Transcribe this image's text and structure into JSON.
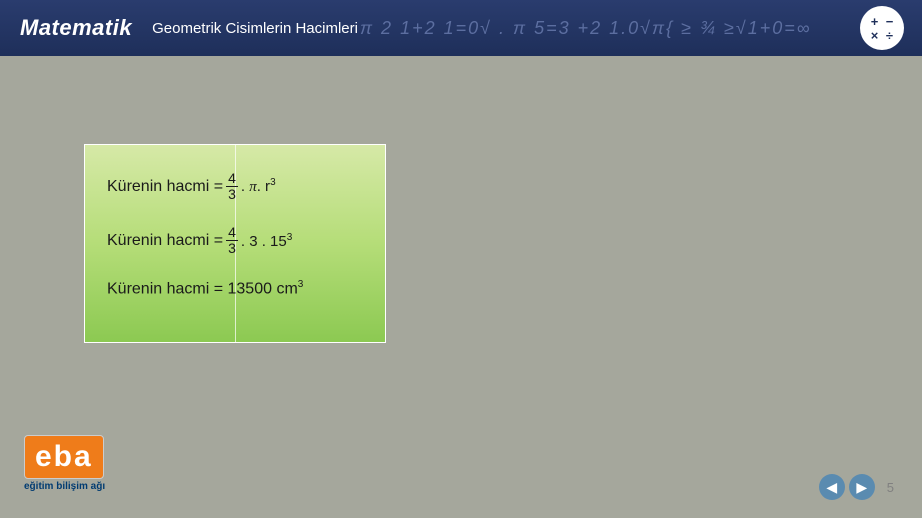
{
  "header": {
    "brand": "Matematik",
    "subtitle": "Geometrik Cisimlerin Hacimleri",
    "math_decoration": "π 2 1+2 1=0√ . π 5=3 +2 1.0√π{ ≥ ¾ ≥√1+0=∞",
    "icon_cells": [
      "+",
      "−",
      "×",
      "÷"
    ],
    "bg_gradient_top": "#2a3c6e",
    "bg_gradient_bottom": "#1e2f5a",
    "decoration_color": "#5c6ea0"
  },
  "content": {
    "background_color": "#a5a79c"
  },
  "formula_box": {
    "gradient_top": "#d6e9a7",
    "gradient_mid": "#b5dd78",
    "gradient_bottom": "#8cc952",
    "border_color": "#ffffff",
    "lines": [
      {
        "label": "Kürenin hacmi = ",
        "frac_num": "4",
        "frac_den": "3",
        "expr_prefix": ". ",
        "expr_pi": "π",
        "expr_mid": ". r",
        "expr_sup": "3"
      },
      {
        "label": "Kürenin hacmi = ",
        "frac_num": "4",
        "frac_den": "3",
        "expr_prefix": ". 3 . 15",
        "expr_sup": "3"
      },
      {
        "label": "Kürenin hacmi = 13500 cm",
        "expr_sup": "3"
      }
    ]
  },
  "logo": {
    "text": "eba",
    "subtitle": "eğitim bilişim ağı",
    "bg_color": "#ef7c1a",
    "sub_color": "#003b71"
  },
  "nav": {
    "prev_glyph": "◀",
    "next_glyph": "▶",
    "page_number": "5",
    "btn_color": "#5a8bb0"
  }
}
